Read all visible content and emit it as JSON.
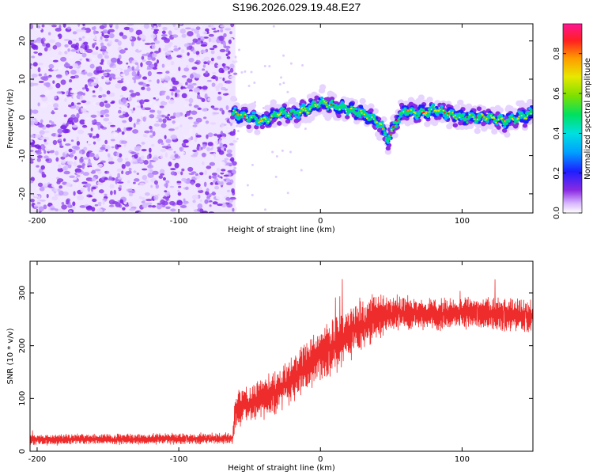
{
  "title": "S196.2026.029.19.48.E27",
  "colors": {
    "snr_line": "#ee2c2c",
    "axis": "#000000",
    "background": "#ffffff"
  },
  "chart_data": [
    {
      "type": "heatmap",
      "name": "spectrogram",
      "xlabel": "Height of straight line (km)",
      "ylabel": "Frequency (Hz)",
      "xlim": [
        -205,
        150
      ],
      "ylim": [
        -25,
        24.5
      ],
      "xticks": [
        -200,
        -100,
        0,
        100
      ],
      "yticks": [
        -20,
        -10,
        0,
        10,
        20
      ],
      "noise_region_x": [
        -205,
        -60
      ],
      "signal_track": {
        "x": [
          -62,
          -50,
          -40,
          -30,
          -20,
          -10,
          0,
          10,
          20,
          30,
          40,
          44,
          48,
          52,
          60,
          70,
          80,
          90,
          100,
          110,
          120,
          130,
          140,
          150
        ],
        "freq": [
          1,
          0,
          -1,
          1,
          1,
          2,
          4,
          3,
          2,
          1,
          -1,
          -3,
          -6,
          -2,
          2,
          1,
          2,
          1,
          0,
          0,
          0,
          -1,
          0,
          1
        ]
      },
      "colorbar": {
        "label": "Normalized spectral amplitude",
        "range": [
          0.0,
          0.95
        ],
        "ticks": [
          0.0,
          0.2,
          0.4,
          0.6,
          0.8
        ],
        "tick_labels": [
          "0.0",
          "0.2",
          "0.4",
          "0.6",
          "0.8"
        ]
      }
    },
    {
      "type": "line",
      "name": "snr",
      "xlabel": "Height of straight line (km)",
      "ylabel": "SNR (10 * v/v)",
      "xlim": [
        -205,
        150
      ],
      "ylim": [
        0,
        360
      ],
      "xticks": [
        -200,
        -100,
        0,
        100
      ],
      "yticks": [
        0,
        100,
        200,
        300
      ],
      "series": [
        {
          "name": "SNR",
          "envelope": {
            "x": [
              -205,
              -62,
              -60,
              -55,
              -50,
              -40,
              -30,
              -20,
              -10,
              0,
              10,
              20,
              30,
              40,
              50,
              60,
              80,
              100,
              120,
              150
            ],
            "mean": [
              22,
              24,
              80,
              85,
              90,
              100,
              115,
              135,
              160,
              185,
              200,
              225,
              240,
              255,
              260,
              262,
              258,
              262,
              260,
              255
            ],
            "amplitude": [
              12,
              12,
              45,
              40,
              40,
              45,
              45,
              50,
              55,
              55,
              60,
              60,
              55,
              50,
              45,
              40,
              35,
              35,
              35,
              35
            ]
          }
        }
      ]
    }
  ]
}
